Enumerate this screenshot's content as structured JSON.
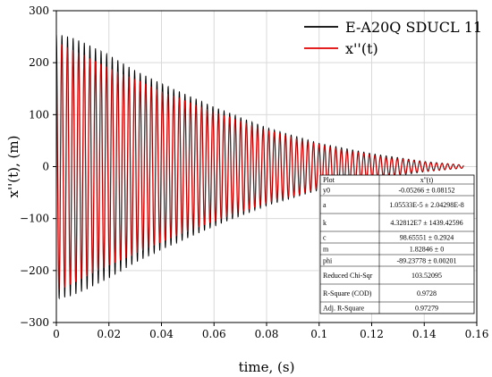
{
  "chart_data": {
    "type": "line",
    "title": "",
    "xlabel": "time, (s)",
    "ylabel": "x''(t), (m)",
    "xlim": [
      0,
      0.16
    ],
    "ylim": [
      -300,
      300
    ],
    "xticks": [
      "0",
      "0.02",
      "0.04",
      "0.06",
      "0.08",
      "0.1",
      "0.12",
      "0.14",
      "0.16"
    ],
    "yticks": [
      "300",
      "200",
      "100",
      "0",
      "−100",
      "−200",
      "−300"
    ],
    "grid": true,
    "legend_position": "top-right",
    "series": [
      {
        "name": "E-A20Q SDUCL 11",
        "color": "#000000",
        "envelope": {
          "t": [
            0,
            0.005,
            0.01,
            0.02,
            0.03,
            0.04,
            0.06,
            0.08,
            0.1,
            0.12,
            0.14,
            0.155
          ],
          "amplitude": [
            255,
            250,
            240,
            215,
            185,
            160,
            115,
            75,
            45,
            25,
            10,
            3
          ]
        },
        "t_end": 0.155
      },
      {
        "name": "x''(t)",
        "color": "#e00000",
        "envelope": {
          "t": [
            0,
            0.005,
            0.01,
            0.02,
            0.03,
            0.04,
            0.06,
            0.08,
            0.1,
            0.12,
            0.14,
            0.155
          ],
          "amplitude": [
            240,
            228,
            215,
            190,
            168,
            145,
            105,
            70,
            42,
            22,
            9,
            3
          ]
        },
        "t_end": 0.155
      }
    ],
    "oscillation_frequency_hz": 470,
    "fit_table": {
      "header": [
        "Plot",
        "x''(t)"
      ],
      "rows": [
        [
          "y0",
          "-0.05266 ± 0.08152"
        ],
        [
          "a",
          "1.05533E-5 ± 2.04298E-8"
        ],
        [
          "k",
          "4.32812E7 ± 1439.42596"
        ],
        [
          "c",
          "98.65551 ± 0.2924"
        ],
        [
          "m",
          "1.82846 ± 0"
        ],
        [
          "phi",
          "-89.23778 ± 0.00201"
        ],
        [
          "Reduced Chi-Sqr",
          "103.52095"
        ],
        [
          "R-Square (COD)",
          "0.9728"
        ],
        [
          "Adj. R-Square",
          "0.97279"
        ]
      ]
    }
  }
}
